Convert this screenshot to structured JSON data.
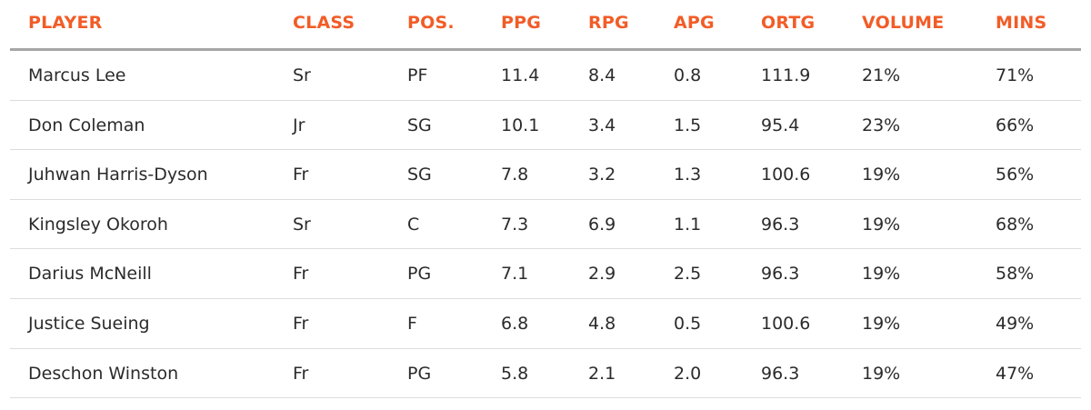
{
  "table": {
    "headers": [
      "PLAYER",
      "CLASS",
      "POS.",
      "PPG",
      "RPG",
      "APG",
      "ORTG",
      "VOLUME",
      "MINS"
    ],
    "rows": [
      [
        "Marcus Lee",
        "Sr",
        "PF",
        "11.4",
        "8.4",
        "0.8",
        "111.9",
        "21%",
        "71%"
      ],
      [
        "Don Coleman",
        "Jr",
        "SG",
        "10.1",
        "3.4",
        "1.5",
        "95.4",
        "23%",
        "66%"
      ],
      [
        "Juhwan Harris-Dyson",
        "Fr",
        "SG",
        "7.8",
        "3.2",
        "1.3",
        "100.6",
        "19%",
        "56%"
      ],
      [
        "Kingsley Okoroh",
        "Sr",
        "C",
        "7.3",
        "6.9",
        "1.1",
        "96.3",
        "19%",
        "68%"
      ],
      [
        "Darius McNeill",
        "Fr",
        "PG",
        "7.1",
        "2.9",
        "2.5",
        "96.3",
        "19%",
        "58%"
      ],
      [
        "Justice Sueing",
        "Fr",
        "F",
        "6.8",
        "4.8",
        "0.5",
        "100.6",
        "19%",
        "49%"
      ],
      [
        "Deschon Winston",
        "Fr",
        "PG",
        "5.8",
        "2.1",
        "2.0",
        "96.3",
        "19%",
        "47%"
      ]
    ]
  },
  "colors": {
    "header_text": "#f25c27",
    "body_text": "#2b2b2b",
    "header_rule": "#a6a6a6",
    "row_rule": "#dcdcdc"
  }
}
